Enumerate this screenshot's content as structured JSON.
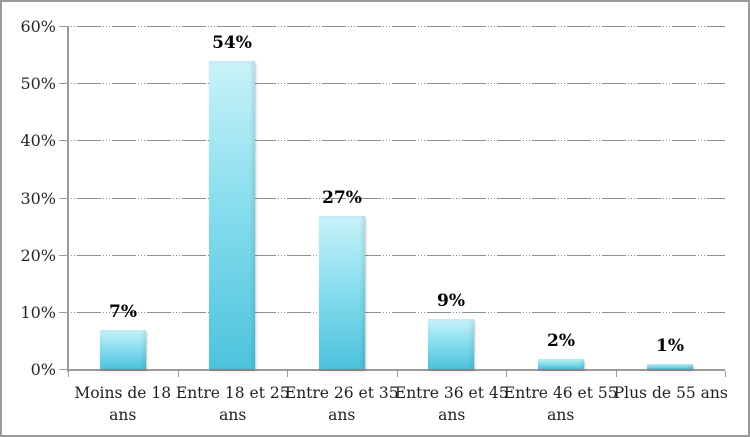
{
  "frame": {
    "background": "#ffffff",
    "border_color": "#9b9b9b"
  },
  "chart_data": {
    "type": "bar",
    "title": "",
    "xlabel": "",
    "ylabel": "",
    "categories": [
      "Moins de 18 ans",
      "Entre 18 et 25 ans",
      "Entre 26 et 35 ans",
      "Entre 36 et 45 ans",
      "Entre 46 et 55 ans",
      "Plus de 55 ans"
    ],
    "category_label_lines": [
      [
        "Moins de 18",
        "ans"
      ],
      [
        "Entre 18 et 25",
        "ans"
      ],
      [
        "Entre 26 et 35",
        "ans"
      ],
      [
        "Entre 36 et 45",
        "ans"
      ],
      [
        "Entre 46 et 55",
        "ans"
      ],
      [
        "Plus de 55 ans"
      ]
    ],
    "values": [
      7,
      54,
      27,
      9,
      2,
      1
    ],
    "data_labels": [
      "7%",
      "54%",
      "27%",
      "9%",
      "2%",
      "1%"
    ],
    "ylim": [
      0,
      60
    ],
    "y_ticks": [
      {
        "value": 0,
        "label": "0%"
      },
      {
        "value": 10,
        "label": "10%"
      },
      {
        "value": 20,
        "label": "20%"
      },
      {
        "value": 30,
        "label": "30%"
      },
      {
        "value": 40,
        "label": "40%"
      },
      {
        "value": 50,
        "label": "50%"
      },
      {
        "value": 60,
        "label": "60%"
      }
    ],
    "grid": true,
    "legend": false,
    "colors": {
      "bar_gradient_top": "#c9f2f9",
      "bar_gradient_bottom": "#4dc3dd",
      "axis": "#9a9a9a",
      "gridline": "#8f8f8f",
      "data_label": "#000000",
      "tick_label": "#262626"
    }
  }
}
